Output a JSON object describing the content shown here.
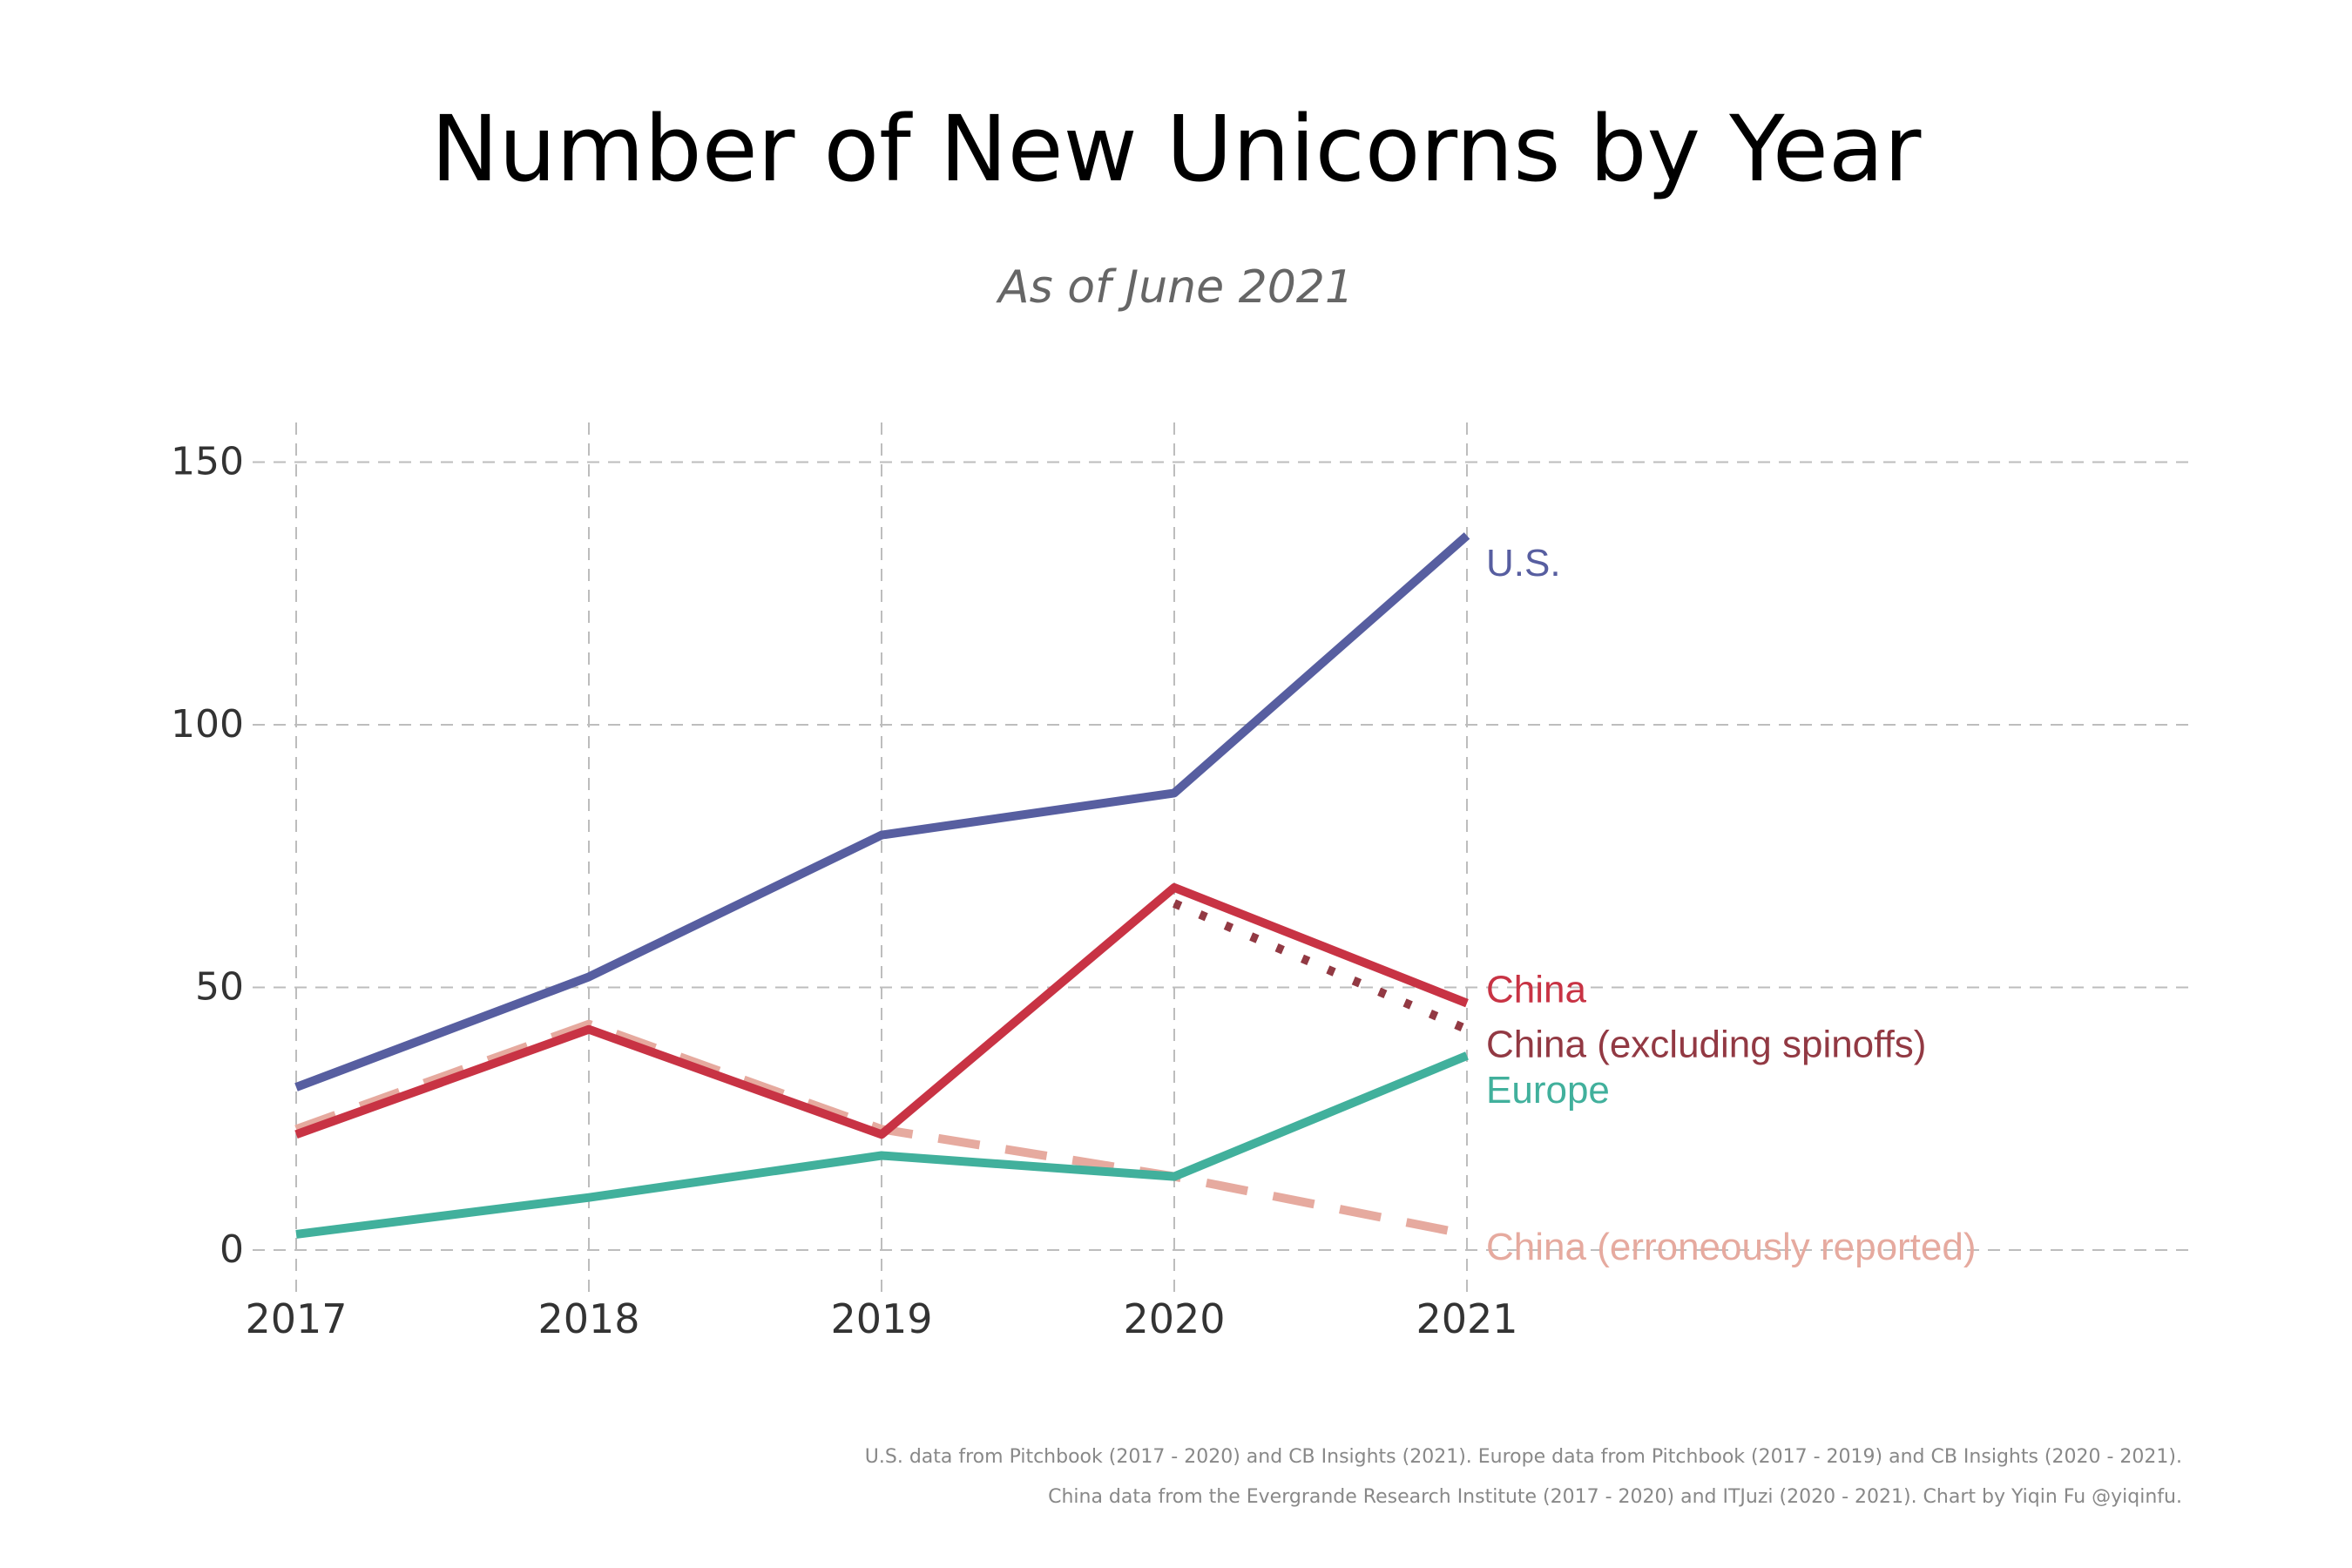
{
  "chart_data": {
    "type": "line",
    "title": "Number of New Unicorns by Year",
    "subtitle": "As of June 2021",
    "xlabel": "",
    "ylabel": "",
    "categories": [
      "2017",
      "2018",
      "2019",
      "2020",
      "2021"
    ],
    "x_ticks": [
      "2017",
      "2018",
      "2019",
      "2020",
      "2021"
    ],
    "y_ticks": [
      "0",
      "50",
      "100",
      "150"
    ],
    "ylim": [
      -6,
      158
    ],
    "grid": true,
    "legend": "direct labels at line ends",
    "series": [
      {
        "name": "U.S.",
        "values": [
          31,
          52,
          79,
          87,
          136
        ],
        "color": "#575ea0",
        "style": "solid"
      },
      {
        "name": "China",
        "values": [
          22,
          42,
          22,
          69,
          47
        ],
        "color": "#c83344",
        "style": "solid"
      },
      {
        "name": "China (excluding spinoffs)",
        "values": [
          null,
          null,
          null,
          66,
          42
        ],
        "color": "#923943",
        "style": "dotted"
      },
      {
        "name": "Europe",
        "values": [
          3,
          10,
          18,
          14,
          37
        ],
        "color": "#41b09c",
        "style": "solid"
      },
      {
        "name": "China (erroneously reported)",
        "values": [
          23,
          43,
          23,
          14,
          3
        ],
        "color": "#e6aa9f",
        "style": "dashed"
      }
    ]
  },
  "caption": {
    "line1": "U.S. data from Pitchbook (2017 - 2020) and CB Insights (2021). Europe data from Pitchbook (2017 - 2019) and CB Insights (2020 - 2021).",
    "line2": "China data from the Evergrande Research Institute (2017 - 2020) and ITJuzi (2020 - 2021). Chart by Yiqin Fu @yiqinfu."
  }
}
